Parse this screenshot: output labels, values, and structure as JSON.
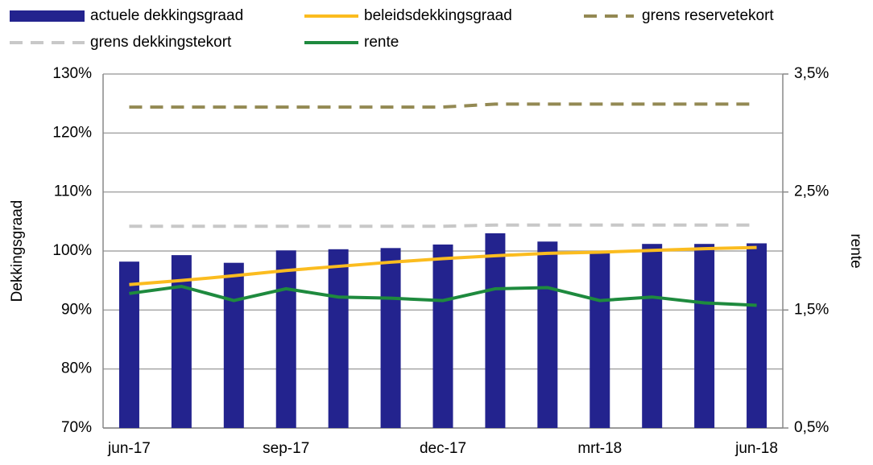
{
  "chart_data": {
    "type": "bar",
    "y_label": "Dekkingsgraad",
    "y2_label": "rente",
    "categories": [
      "jun-17",
      null,
      null,
      "sep-17",
      null,
      null,
      "dec-17",
      null,
      null,
      "mrt-18",
      null,
      null,
      "jun-18"
    ],
    "series": [
      {
        "name": "actuele dekkingsgraad",
        "type": "bar",
        "color": "#23238e",
        "values": [
          98.2,
          99.3,
          98.0,
          100.1,
          100.3,
          100.5,
          101.1,
          103.0,
          101.6,
          99.7,
          101.2,
          101.2,
          101.3
        ]
      },
      {
        "name": "beleidsdekkingsgraad",
        "type": "line",
        "color": "#fbbc1f",
        "values": [
          94.3,
          95.0,
          95.8,
          96.7,
          97.4,
          98.1,
          98.7,
          99.2,
          99.6,
          99.8,
          100.1,
          100.4,
          100.6
        ]
      },
      {
        "name": "grens reservetekort",
        "type": "line",
        "dashed": true,
        "color": "#938953",
        "values": [
          124.4,
          124.4,
          124.4,
          124.4,
          124.4,
          124.4,
          124.4,
          124.9,
          124.9,
          124.9,
          124.9,
          124.9,
          124.9
        ]
      },
      {
        "name": "grens dekkingstekort",
        "type": "line",
        "dashed": true,
        "color": "#c8c8c8",
        "values": [
          104.2,
          104.2,
          104.2,
          104.2,
          104.2,
          104.2,
          104.2,
          104.4,
          104.4,
          104.4,
          104.4,
          104.4,
          104.4
        ]
      },
      {
        "name": "rente",
        "type": "line",
        "axis": "y2",
        "color": "#1e8a3e",
        "values": [
          1.64,
          1.7,
          1.58,
          1.68,
          1.61,
          1.6,
          1.58,
          1.68,
          1.69,
          1.58,
          1.61,
          1.56,
          1.54
        ]
      }
    ],
    "ylim": [
      70,
      130
    ],
    "yticks": [
      {
        "value": 70,
        "label": "70%"
      },
      {
        "value": 80,
        "label": "80%"
      },
      {
        "value": 90,
        "label": "90%"
      },
      {
        "value": 100,
        "label": "100%"
      },
      {
        "value": 110,
        "label": "110%"
      },
      {
        "value": 120,
        "label": "120%"
      },
      {
        "value": 130,
        "label": "130%"
      }
    ],
    "y2lim": [
      0.5,
      3.5
    ],
    "y2ticks": [
      {
        "value": 0.5,
        "label": "0,5%"
      },
      {
        "value": 1.5,
        "label": "1,5%"
      },
      {
        "value": 2.5,
        "label": "2,5%"
      },
      {
        "value": 3.5,
        "label": "3,5%"
      }
    ],
    "grid": true,
    "legend": "top"
  }
}
